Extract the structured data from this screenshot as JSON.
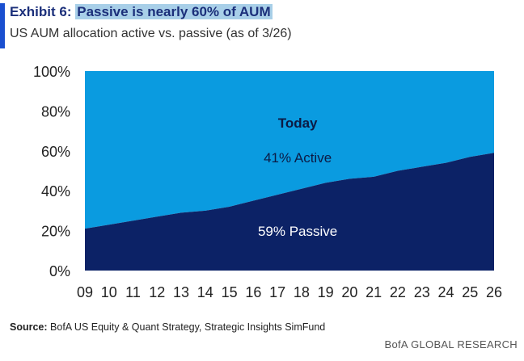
{
  "header": {
    "exhibit_label": "Exhibit 6:",
    "title": "Passive is nearly 60% of AUM",
    "subtitle": "US AUM allocation active vs. passive (as of 3/26)"
  },
  "footer": {
    "source_label": "Source:",
    "source_text": "BofA US Equity & Quant Strategy, Strategic Insights SimFund",
    "brand": "BofA GLOBAL RESEARCH"
  },
  "colors": {
    "active": "#0a9be0",
    "passive": "#0c2266",
    "accent": "#1a4fd0",
    "title_highlight": "#a8cfe8"
  },
  "chart_data": {
    "type": "area",
    "stacked": true,
    "x": [
      "09",
      "10",
      "11",
      "12",
      "13",
      "14",
      "15",
      "16",
      "17",
      "18",
      "19",
      "20",
      "21",
      "22",
      "23",
      "24",
      "25",
      "26"
    ],
    "series": [
      {
        "name": "Passive",
        "values": [
          21,
          23,
          25,
          27,
          29,
          30,
          32,
          35,
          38,
          41,
          44,
          46,
          47,
          50,
          52,
          54,
          57,
          59
        ]
      },
      {
        "name": "Active",
        "values": [
          79,
          77,
          75,
          73,
          71,
          70,
          68,
          65,
          62,
          59,
          56,
          54,
          53,
          50,
          48,
          46,
          43,
          41
        ]
      }
    ],
    "yticks": [
      "0%",
      "20%",
      "40%",
      "60%",
      "80%",
      "100%"
    ],
    "ylim": [
      0,
      100
    ],
    "annotations": {
      "today": "Today",
      "active": "41% Active",
      "passive": "59% Passive"
    }
  }
}
